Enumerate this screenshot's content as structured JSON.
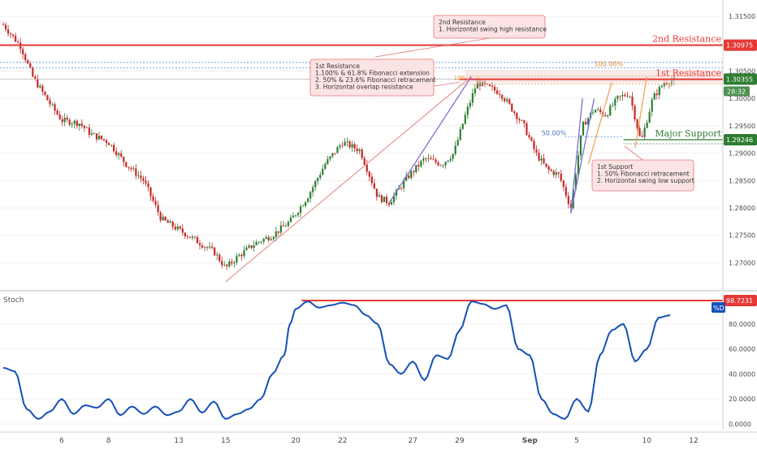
{
  "chart_data": [
    {
      "type": "candlestick",
      "pane": "price",
      "y_range": [
        1.265,
        1.318
      ],
      "y_ticks": [
        1.27,
        1.275,
        1.28,
        1.285,
        1.29,
        1.295,
        1.3,
        1.305,
        1.31,
        1.315
      ],
      "y_tick_labels": [
        "1.27000",
        "1.27500",
        "1.28000",
        "1.28500",
        "1.29000",
        "1.29500",
        "1.30000",
        "1.30500",
        "1.31000",
        "1.31500"
      ],
      "x_range": [
        0,
        110
      ],
      "x_ticks": [
        {
          "x": 10,
          "label": "6"
        },
        {
          "x": 18,
          "label": "8"
        },
        {
          "x": 30,
          "label": "13"
        },
        {
          "x": 38,
          "label": "15"
        },
        {
          "x": 50,
          "label": "20"
        },
        {
          "x": 58,
          "label": "22"
        },
        {
          "x": 70,
          "label": "27"
        },
        {
          "x": 78,
          "label": "29"
        },
        {
          "x": 90,
          "label": "Sep"
        },
        {
          "x": 98,
          "label": "5"
        },
        {
          "x": 110,
          "label": "10"
        },
        {
          "x": 118,
          "label": "12"
        }
      ],
      "price_anchors": [
        [
          0,
          1.3135
        ],
        [
          3,
          1.3095
        ],
        [
          5,
          1.304
        ],
        [
          8,
          1.299
        ],
        [
          10,
          1.296
        ],
        [
          13,
          1.2955
        ],
        [
          15,
          1.2935
        ],
        [
          18,
          1.292
        ],
        [
          21,
          1.288
        ],
        [
          24,
          1.285
        ],
        [
          27,
          1.278
        ],
        [
          30,
          1.276
        ],
        [
          33,
          1.274
        ],
        [
          36,
          1.272
        ],
        [
          38,
          1.269
        ],
        [
          40,
          1.271
        ],
        [
          43,
          1.2735
        ],
        [
          46,
          1.275
        ],
        [
          49,
          1.2775
        ],
        [
          52,
          1.282
        ],
        [
          55,
          1.288
        ],
        [
          58,
          1.292
        ],
        [
          61,
          1.2905
        ],
        [
          64,
          1.282
        ],
        [
          66,
          1.281
        ],
        [
          69,
          1.2855
        ],
        [
          72,
          1.289
        ],
        [
          75,
          1.288
        ],
        [
          77,
          1.29
        ],
        [
          79,
          1.297
        ],
        [
          81,
          1.303
        ],
        [
          83,
          1.302
        ],
        [
          85,
          1.301
        ],
        [
          87,
          1.298
        ],
        [
          89,
          1.295
        ],
        [
          91,
          1.29
        ],
        [
          93,
          1.287
        ],
        [
          95,
          1.286
        ],
        [
          97,
          1.28
        ],
        [
          99,
          1.295
        ],
        [
          101,
          1.298
        ],
        [
          103,
          1.297
        ],
        [
          105,
          1.3
        ],
        [
          107,
          1.301
        ],
        [
          109,
          1.292
        ],
        [
          111,
          1.3
        ],
        [
          113,
          1.303
        ],
        [
          115,
          1.3035
        ]
      ],
      "horizontal_lines": [
        {
          "name": "2nd Resistance",
          "price": 1.30975,
          "color": "#e53935",
          "label": "2nd Resistance",
          "badge": "1.30975"
        },
        {
          "name": "1st Resistance",
          "price": 1.3035,
          "color": "#e53935",
          "label": "1st Resistance"
        },
        {
          "name": "Major Support",
          "price": 1.29246,
          "color": "#2e7d32",
          "label": "Major Support",
          "badge": "1.29246"
        }
      ],
      "last_price_badge": {
        "price": 1.30355,
        "label": "1.30355",
        "countdown": "28:32",
        "color": "#2e7d32"
      },
      "fib_labels": [
        "100.00%",
        "50.00%",
        "100"
      ],
      "annotations": [
        {
          "lines": [
            "2nd Resistance",
            "1. Horizontal swing high resistance"
          ]
        },
        {
          "lines": [
            "1st Resistance",
            "1.100% & 61.8% Fibonacci extension",
            "2. 50% & 23.6% Fibonacci retracement",
            "3. Horizontal overlap resistance"
          ]
        },
        {
          "lines": [
            "1st Support",
            "1. 50% Fibonacci retracement",
            "2. Horizontal swing low support"
          ]
        }
      ],
      "colors": {
        "up": "#2e7d32",
        "down": "#c62828",
        "resistance": "#e53935",
        "support": "#2e7d32",
        "badge_red": "#e53935",
        "annotation_bg": "#fce4e4",
        "annotation_border": "#e57373"
      }
    },
    {
      "type": "line",
      "pane": "stoch",
      "title": "Stoch",
      "series": [
        {
          "name": "%D",
          "color": "#1550b8"
        }
      ],
      "y_range": [
        0,
        100
      ],
      "y_ticks": [
        0,
        20,
        40,
        60,
        80
      ],
      "y_tick_labels": [
        "0.0000",
        "20.0000",
        "40.0000",
        "60.0000",
        "80.0000"
      ],
      "level_line": {
        "value": 98.7231,
        "label": "98.7231",
        "color": "#e53935"
      },
      "series_badge": {
        "label": "%D",
        "color": "#1550b8"
      },
      "anchors": [
        [
          0,
          45
        ],
        [
          2,
          42
        ],
        [
          4,
          12
        ],
        [
          6,
          4
        ],
        [
          8,
          10
        ],
        [
          10,
          20
        ],
        [
          12,
          8
        ],
        [
          14,
          15
        ],
        [
          16,
          13
        ],
        [
          18,
          20
        ],
        [
          20,
          7
        ],
        [
          22,
          14
        ],
        [
          24,
          8
        ],
        [
          26,
          14
        ],
        [
          28,
          7
        ],
        [
          30,
          10
        ],
        [
          32,
          20
        ],
        [
          34,
          9
        ],
        [
          36,
          18
        ],
        [
          38,
          4
        ],
        [
          40,
          8
        ],
        [
          42,
          12
        ],
        [
          44,
          20
        ],
        [
          46,
          40
        ],
        [
          48,
          55
        ],
        [
          49,
          80
        ],
        [
          50,
          92
        ],
        [
          52,
          98
        ],
        [
          54,
          93
        ],
        [
          56,
          95
        ],
        [
          58,
          97
        ],
        [
          60,
          95
        ],
        [
          62,
          87
        ],
        [
          64,
          80
        ],
        [
          66,
          48
        ],
        [
          68,
          40
        ],
        [
          70,
          50
        ],
        [
          72,
          35
        ],
        [
          74,
          55
        ],
        [
          76,
          52
        ],
        [
          78,
          75
        ],
        [
          80,
          98
        ],
        [
          82,
          96
        ],
        [
          84,
          92
        ],
        [
          86,
          95
        ],
        [
          88,
          60
        ],
        [
          90,
          55
        ],
        [
          92,
          20
        ],
        [
          94,
          8
        ],
        [
          96,
          4
        ],
        [
          98,
          20
        ],
        [
          100,
          10
        ],
        [
          102,
          55
        ],
        [
          104,
          75
        ],
        [
          106,
          80
        ],
        [
          108,
          50
        ],
        [
          110,
          60
        ],
        [
          112,
          85
        ],
        [
          114,
          87
        ]
      ]
    }
  ]
}
